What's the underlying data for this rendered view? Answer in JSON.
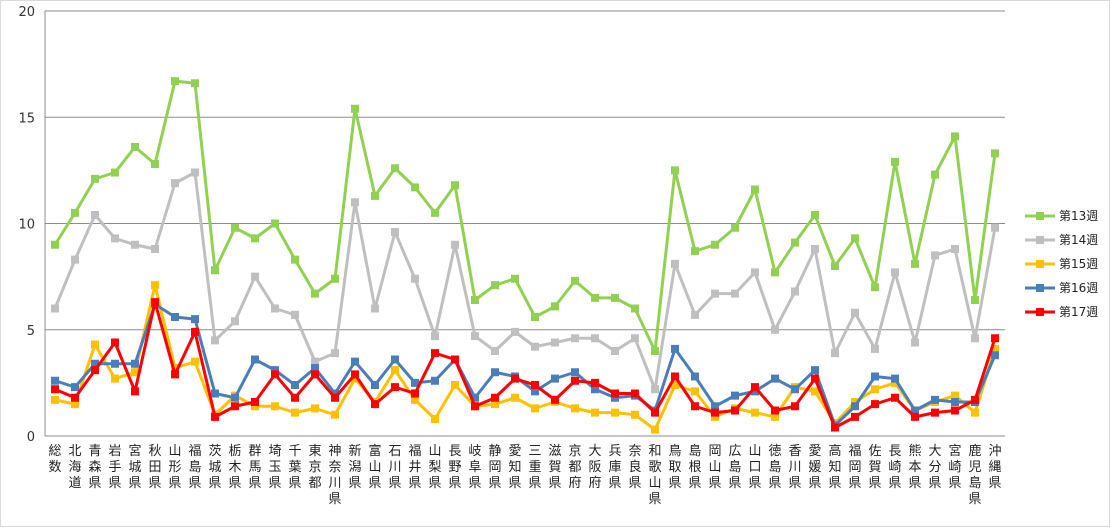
{
  "chart_data": {
    "type": "line",
    "title": "",
    "xlabel": "",
    "ylabel": "",
    "ylim": [
      0,
      20
    ],
    "yticks": [
      0,
      5,
      10,
      15,
      20
    ],
    "grid": true,
    "legend_position": "right",
    "categories": [
      "総数",
      "北海道",
      "青森県",
      "岩手県",
      "宮城県",
      "秋田県",
      "山形県",
      "福島県",
      "茨城県",
      "栃木県",
      "群馬県",
      "埼玉県",
      "千葉県",
      "東京都",
      "神奈川県",
      "新潟県",
      "富山県",
      "石川県",
      "福井県",
      "山梨県",
      "長野県",
      "岐阜県",
      "静岡県",
      "愛知県",
      "三重県",
      "滋賀県",
      "京都府",
      "大阪府",
      "兵庫県",
      "奈良県",
      "和歌山県",
      "鳥取県",
      "島根県",
      "岡山県",
      "広島県",
      "山口県",
      "徳島県",
      "香川県",
      "愛媛県",
      "高知県",
      "福岡県",
      "佐賀県",
      "長崎県",
      "熊本県",
      "大分県",
      "宮崎県",
      "鹿児島県",
      "沖縄県"
    ],
    "series": [
      {
        "name": "第13週",
        "color": "#92d050",
        "marker": "square",
        "values": [
          9.0,
          10.5,
          12.1,
          12.4,
          13.6,
          12.8,
          16.7,
          16.6,
          7.8,
          9.8,
          9.3,
          10.0,
          8.3,
          6.7,
          7.4,
          15.4,
          11.3,
          12.6,
          11.7,
          10.5,
          11.8,
          6.4,
          7.1,
          7.4,
          5.6,
          6.1,
          7.3,
          6.5,
          6.5,
          6.0,
          4.0,
          12.5,
          8.7,
          9.0,
          9.8,
          11.6,
          7.7,
          9.1,
          10.4,
          8.0,
          9.3,
          7.0,
          12.9,
          8.1,
          12.3,
          14.1,
          6.4,
          13.3
        ]
      },
      {
        "name": "第14週",
        "color": "#bfbfbf",
        "marker": "square",
        "values": [
          6.0,
          8.3,
          10.4,
          9.3,
          9.0,
          8.8,
          11.9,
          12.4,
          4.5,
          5.4,
          7.5,
          6.0,
          5.7,
          3.5,
          3.9,
          11.0,
          6.0,
          9.6,
          7.4,
          4.7,
          9.0,
          4.7,
          4.0,
          4.9,
          4.2,
          4.4,
          4.6,
          4.6,
          4.0,
          4.6,
          2.2,
          8.1,
          5.7,
          6.7,
          6.7,
          7.7,
          5.0,
          6.8,
          8.8,
          3.9,
          5.8,
          4.1,
          7.7,
          4.4,
          8.5,
          8.8,
          4.6,
          9.8
        ]
      },
      {
        "name": "第15週",
        "color": "#ffc000",
        "marker": "square",
        "values": [
          1.7,
          1.5,
          4.3,
          2.7,
          3.0,
          7.1,
          3.2,
          3.5,
          1.0,
          1.9,
          1.4,
          1.4,
          1.1,
          1.3,
          1.0,
          2.7,
          1.6,
          3.1,
          1.7,
          0.8,
          2.4,
          1.4,
          1.5,
          1.8,
          1.3,
          1.6,
          1.3,
          1.1,
          1.1,
          1.0,
          0.3,
          2.4,
          2.1,
          0.9,
          1.3,
          1.1,
          0.9,
          2.3,
          2.1,
          0.6,
          1.6,
          2.2,
          2.5,
          1.2,
          1.6,
          1.9,
          1.1,
          4.1
        ]
      },
      {
        "name": "第16週",
        "color": "#4a7ebb",
        "marker": "square",
        "values": [
          2.6,
          2.3,
          3.4,
          3.4,
          3.4,
          6.2,
          5.6,
          5.5,
          2.0,
          1.8,
          3.6,
          3.1,
          2.4,
          3.2,
          2.0,
          3.5,
          2.4,
          3.6,
          2.5,
          2.6,
          3.6,
          1.8,
          3.0,
          2.8,
          2.1,
          2.7,
          3.0,
          2.2,
          1.8,
          1.9,
          1.2,
          4.1,
          2.8,
          1.4,
          1.9,
          2.1,
          2.7,
          2.2,
          3.1,
          0.5,
          1.4,
          2.8,
          2.7,
          1.2,
          1.7,
          1.6,
          1.6,
          3.8
        ]
      },
      {
        "name": "第17週",
        "color": "#ff0000",
        "marker": "square",
        "values": [
          2.2,
          1.8,
          3.1,
          4.4,
          2.1,
          6.3,
          2.9,
          4.9,
          0.9,
          1.4,
          1.6,
          2.9,
          1.8,
          2.9,
          1.8,
          2.9,
          1.5,
          2.3,
          2.0,
          3.9,
          3.6,
          1.4,
          1.8,
          2.7,
          2.4,
          1.7,
          2.6,
          2.5,
          2.0,
          2.0,
          1.1,
          2.8,
          1.4,
          1.1,
          1.2,
          2.3,
          1.2,
          1.4,
          2.7,
          0.4,
          0.9,
          1.5,
          1.8,
          0.9,
          1.1,
          1.2,
          1.7,
          4.6
        ]
      }
    ]
  }
}
